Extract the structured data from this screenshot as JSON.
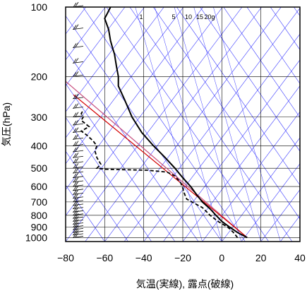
{
  "chart_data": {
    "type": "line",
    "title": "",
    "xlabel": "気温(実線), 露点(破線)",
    "ylabel": "気圧(hPa)",
    "x_unit": "°C",
    "y_unit": "hPa",
    "xlim": [
      -80,
      40
    ],
    "ylim": [
      1040,
      100
    ],
    "y_scale": "log",
    "x_ticks": [
      -80,
      -60,
      -40,
      -20,
      0,
      20,
      40
    ],
    "y_ticks": [
      100,
      200,
      300,
      400,
      500,
      600,
      700,
      800,
      900,
      1000
    ],
    "grid": true,
    "mixing_ratio_labels": [
      "1",
      "5",
      "10",
      "15",
      "20g"
    ],
    "mixing_ratio_values": [
      1,
      5,
      10,
      15,
      20
    ],
    "series": [
      {
        "line_style": "solid",
        "color": "#000000",
        "points": [
          [
            13,
            1000
          ],
          [
            8,
            950
          ],
          [
            4,
            900
          ],
          [
            0,
            850
          ],
          [
            -3,
            800
          ],
          [
            -6,
            750
          ],
          [
            -10,
            700
          ],
          [
            -13,
            650
          ],
          [
            -16,
            600
          ],
          [
            -20,
            550
          ],
          [
            -24,
            500
          ],
          [
            -29,
            450
          ],
          [
            -35,
            400
          ],
          [
            -41,
            350
          ],
          [
            -46,
            300
          ],
          [
            -50,
            250
          ],
          [
            -53,
            220
          ],
          [
            -53,
            200
          ],
          [
            -54,
            180
          ],
          [
            -55,
            160
          ],
          [
            -56,
            150
          ],
          [
            -57,
            140
          ],
          [
            -58,
            125
          ],
          [
            -60,
            112
          ],
          [
            -59,
            108
          ],
          [
            -57,
            100
          ]
        ]
      },
      {
        "line_style": "dashed",
        "color": "#000000",
        "points": [
          [
            8,
            1000
          ],
          [
            6,
            950
          ],
          [
            3,
            900
          ],
          [
            -2,
            850
          ],
          [
            -6,
            800
          ],
          [
            -10,
            740
          ],
          [
            -14,
            710
          ],
          [
            -18,
            680
          ],
          [
            -19,
            650
          ],
          [
            -20,
            610
          ],
          [
            -21,
            580
          ],
          [
            -24,
            540
          ],
          [
            -28,
            520
          ],
          [
            -38,
            510
          ],
          [
            -48,
            508
          ],
          [
            -60,
            505
          ],
          [
            -64,
            500
          ],
          [
            -62,
            480
          ],
          [
            -64,
            450
          ],
          [
            -65,
            420
          ],
          [
            -64,
            400
          ],
          [
            -66,
            380
          ],
          [
            -69,
            360
          ],
          [
            -72,
            345
          ],
          [
            -68,
            330
          ],
          [
            -72,
            310
          ],
          [
            -71,
            300
          ],
          [
            -72,
            290
          ],
          [
            -71,
            280
          ]
        ]
      }
    ],
    "curves": {
      "red_line": [
        [
          13,
          1000
        ],
        [
          -76,
          240
        ]
      ],
      "pink_line": [
        [
          13,
          1000
        ],
        [
          -80,
          210
        ]
      ]
    },
    "wind_barb_pressures": [
      1000,
      975,
      950,
      925,
      900,
      875,
      850,
      825,
      800,
      775,
      750,
      725,
      700,
      675,
      650,
      625,
      600,
      575,
      550,
      525,
      500,
      475,
      450,
      425,
      400,
      375,
      350,
      325,
      300,
      275,
      250,
      200,
      175,
      150,
      125,
      100
    ]
  },
  "colors": {
    "temperature": "#000000",
    "dewpoint": "#000000",
    "grid": "#000000",
    "isotherm": "#3a3aff",
    "red_curve": "#d40000",
    "pink_curve": "#c85080"
  }
}
